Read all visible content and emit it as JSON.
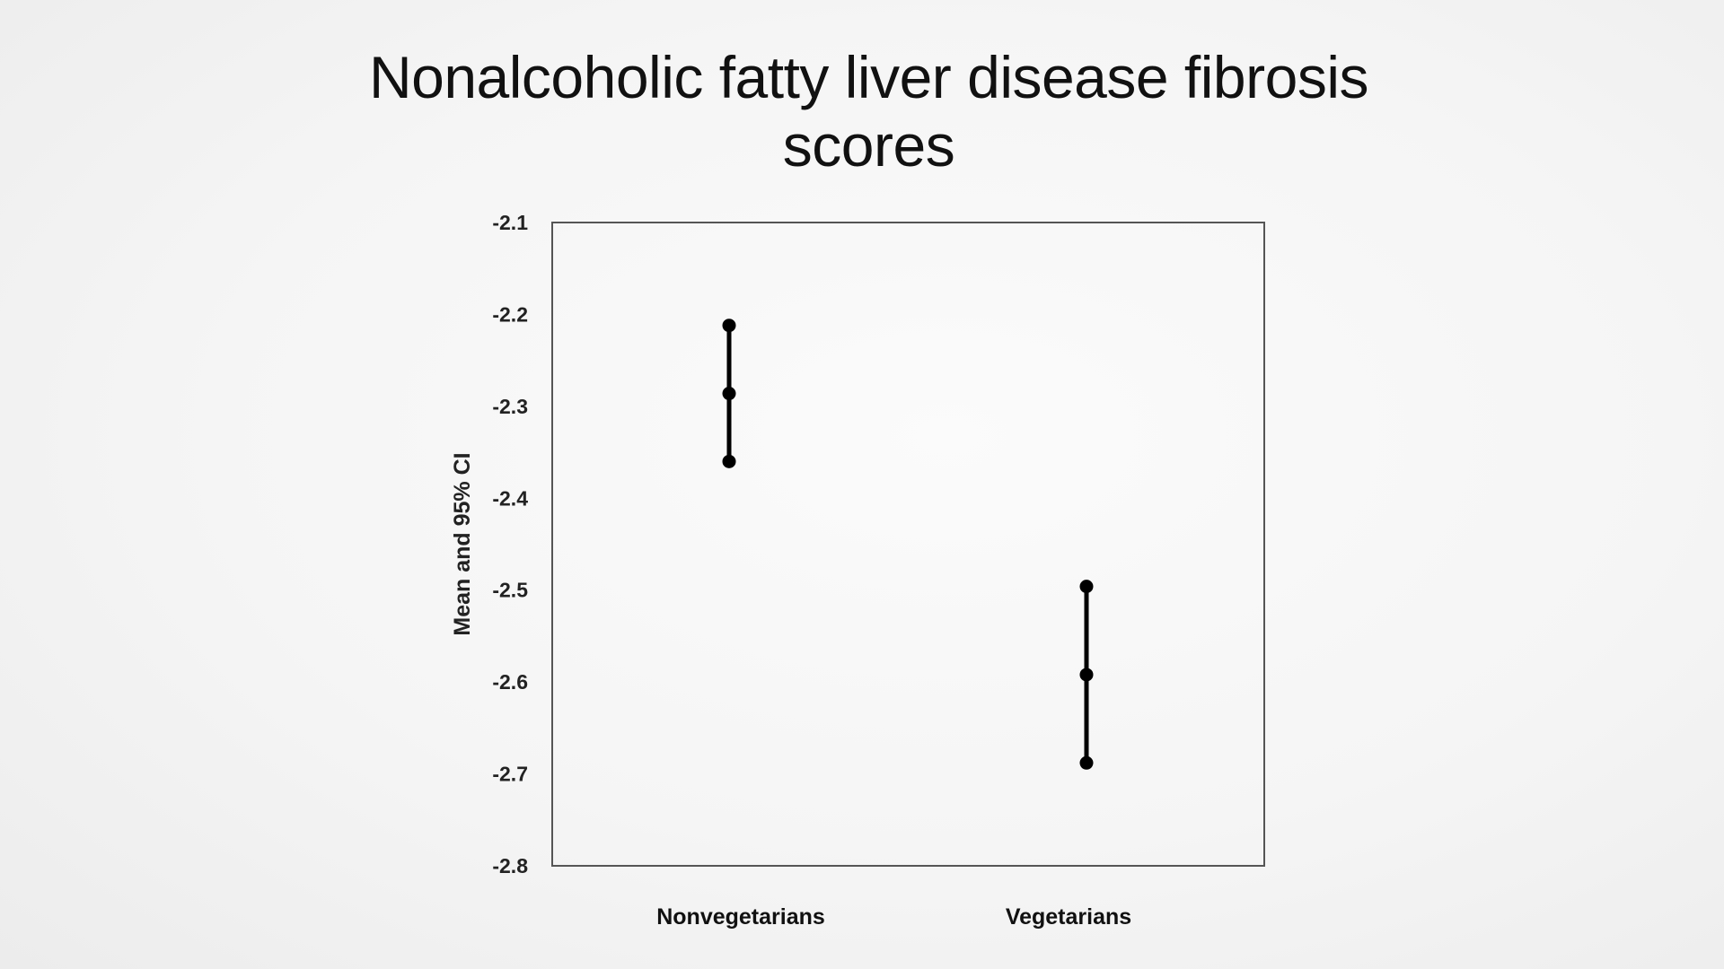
{
  "title_line1": "Nonalcoholic fatty liver disease fibrosis",
  "title_line2": "scores",
  "chart_data": {
    "type": "errorbar",
    "title": "Nonalcoholic fatty liver disease fibrosis scores",
    "ylabel": "Mean and 95% CI",
    "xlabel": "",
    "categories": [
      "Nonvegetarians",
      "Vegetarians"
    ],
    "mean": [
      -2.286,
      -2.592
    ],
    "lower": [
      -2.36,
      -2.688
    ],
    "upper": [
      -2.212,
      -2.496
    ],
    "ylim": [
      -2.8,
      -2.1
    ],
    "yticks": [
      -2.1,
      -2.2,
      -2.3,
      -2.4,
      -2.5,
      -2.6,
      -2.7,
      -2.8
    ],
    "ytick_labels": [
      "-2.1",
      "-2.2",
      "-2.3",
      "-2.4",
      "-2.5",
      "-2.6",
      "-2.7",
      "-2.8"
    ],
    "grid": false,
    "legend": "none",
    "marker_color": "#000000"
  }
}
